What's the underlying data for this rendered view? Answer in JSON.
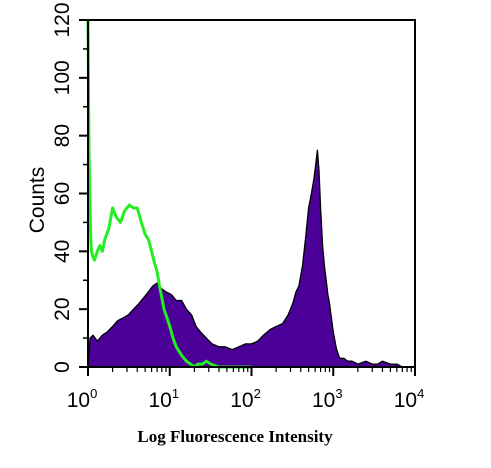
{
  "chart_data": {
    "type": "area",
    "title": "",
    "xlabel": "Log Fluorescence Intensity",
    "ylabel": "Counts",
    "x_scale": "log",
    "xlim": [
      1,
      10000
    ],
    "ylim": [
      0,
      120
    ],
    "x_ticks": [
      {
        "value": 1,
        "base": "10",
        "exp": "0"
      },
      {
        "value": 10,
        "base": "10",
        "exp": "1"
      },
      {
        "value": 100,
        "base": "10",
        "exp": "2"
      },
      {
        "value": 1000,
        "base": "10",
        "exp": "3"
      },
      {
        "value": 10000,
        "base": "10",
        "exp": "4"
      }
    ],
    "y_ticks": [
      0,
      20,
      40,
      60,
      80,
      100,
      120
    ],
    "grid": false,
    "legend": "none",
    "series": [
      {
        "style": "filled",
        "color": "#4B0097",
        "x": [
          1,
          1.06,
          1.15,
          1.3,
          1.5,
          1.7,
          2,
          2.3,
          2.7,
          3.1,
          3.6,
          4.2,
          4.8,
          5.5,
          6.2,
          7,
          8,
          9,
          10.5,
          12,
          14,
          16,
          18.5,
          21,
          24,
          28,
          33,
          40,
          48,
          58,
          70,
          85,
          100,
          120,
          140,
          170,
          200,
          240,
          280,
          320,
          350,
          380,
          420,
          460,
          500,
          540,
          580,
          610,
          640,
          670,
          700,
          740,
          780,
          820,
          860,
          900,
          950,
          1000,
          1100,
          1200,
          1350,
          1500,
          1700,
          2000,
          2500,
          3000,
          3500,
          4000,
          5000,
          6000,
          7000,
          8000
        ],
        "values": [
          0,
          10,
          11,
          9,
          11,
          12,
          14,
          16,
          17,
          18,
          20,
          22,
          24,
          26,
          28,
          29,
          27,
          26,
          25,
          23,
          23,
          20,
          18,
          14,
          12,
          10,
          8,
          7,
          7,
          6,
          7,
          8,
          8,
          9,
          11,
          13,
          14,
          15,
          18,
          22,
          26,
          28,
          35,
          45,
          55,
          60,
          65,
          70,
          75,
          68,
          55,
          42,
          35,
          30,
          25,
          22,
          17,
          12,
          6,
          3,
          3,
          2,
          2,
          1,
          2,
          1,
          1,
          2,
          1,
          1,
          0,
          0
        ]
      },
      {
        "style": "line",
        "color": "#22EE22",
        "x": [
          1,
          1.03,
          1.05,
          1.08,
          1.1,
          1.15,
          1.2,
          1.3,
          1.4,
          1.5,
          1.6,
          1.8,
          2,
          2.2,
          2.5,
          2.8,
          3.2,
          3.6,
          4,
          4.5,
          5,
          5.5,
          6,
          6.5,
          7,
          7.5,
          8,
          8.5,
          9,
          10,
          11,
          12,
          14,
          16,
          18,
          20,
          22,
          25,
          28,
          32,
          40,
          60,
          100
        ],
        "values": [
          122,
          75,
          60,
          45,
          40,
          38,
          37,
          40,
          42,
          40,
          44,
          48,
          55,
          52,
          50,
          54,
          56,
          55,
          55,
          50,
          46,
          44,
          40,
          36,
          33,
          28,
          24,
          20,
          18,
          14,
          10,
          7,
          4,
          2,
          1,
          0,
          1,
          1,
          2,
          1,
          0,
          0,
          0
        ]
      }
    ]
  }
}
